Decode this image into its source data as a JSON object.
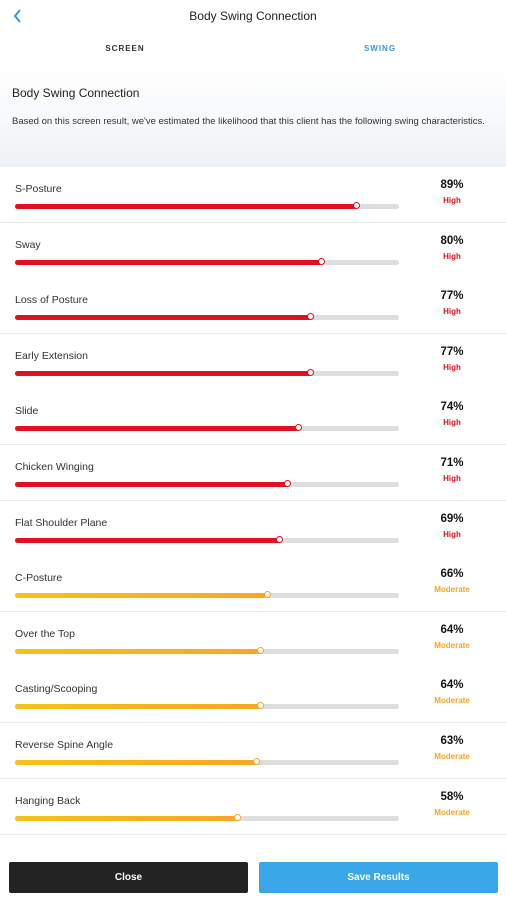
{
  "header": {
    "title": "Body Swing Connection",
    "back_icon": "chevron-left-icon"
  },
  "tabs": [
    {
      "label": "SCREEN"
    },
    {
      "label": "SWING"
    }
  ],
  "active_tab": "SWING",
  "intro": {
    "title": "Body Swing Connection",
    "text": "Based on this screen result, we've estimated the likelihood that this client has the following swing characteristics."
  },
  "colors": {
    "high": "#e0101e",
    "moderate": "#f5a623",
    "accent": "#3c95e0",
    "save_button": "#3aa7e8",
    "close_button": "#232323"
  },
  "characteristics": [
    {
      "name": "S-Posture",
      "percent": "89%",
      "value": 89,
      "level": "High"
    },
    {
      "name": "Sway",
      "percent": "80%",
      "value": 80,
      "level": "High"
    },
    {
      "name": "Loss of Posture",
      "percent": "77%",
      "value": 77,
      "level": "High"
    },
    {
      "name": "Early Extension",
      "percent": "77%",
      "value": 77,
      "level": "High"
    },
    {
      "name": "Slide",
      "percent": "74%",
      "value": 74,
      "level": "High"
    },
    {
      "name": "Chicken Winging",
      "percent": "71%",
      "value": 71,
      "level": "High"
    },
    {
      "name": "Flat Shoulder Plane",
      "percent": "69%",
      "value": 69,
      "level": "High"
    },
    {
      "name": "C-Posture",
      "percent": "66%",
      "value": 66,
      "level": "Moderate"
    },
    {
      "name": "Over the Top",
      "percent": "64%",
      "value": 64,
      "level": "Moderate"
    },
    {
      "name": "Casting/Scooping",
      "percent": "64%",
      "value": 64,
      "level": "Moderate"
    },
    {
      "name": "Reverse Spine Angle",
      "percent": "63%",
      "value": 63,
      "level": "Moderate"
    },
    {
      "name": "Hanging Back",
      "percent": "58%",
      "value": 58,
      "level": "Moderate"
    }
  ],
  "footer": {
    "close_label": "Close",
    "save_label": "Save Results"
  }
}
